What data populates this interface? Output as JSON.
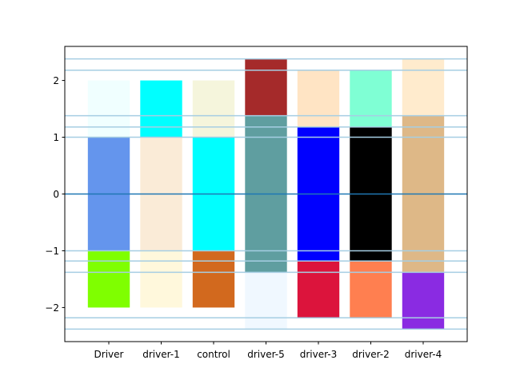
{
  "chart_data": {
    "type": "bar",
    "stacked": true,
    "categories": [
      "Driver",
      "driver-1",
      "control",
      "driver-5",
      "driver-3",
      "driver-2",
      "driver-4"
    ],
    "segments": [
      [
        {
          "from": -1,
          "to": 1,
          "color": "#6495ED"
        },
        {
          "from": 1,
          "to": 2,
          "color": "#F0FFFF"
        },
        {
          "from": -2,
          "to": -1,
          "color": "#7FFF00"
        }
      ],
      [
        {
          "from": -1,
          "to": 1,
          "color": "#FAEBD7"
        },
        {
          "from": 1,
          "to": 2,
          "color": "#00FFFF"
        },
        {
          "from": -2,
          "to": -1,
          "color": "#FFF8DC"
        }
      ],
      [
        {
          "from": -1,
          "to": 1,
          "color": "#00FFFF"
        },
        {
          "from": 1,
          "to": 2,
          "color": "#F5F5DC"
        },
        {
          "from": -2,
          "to": -1,
          "color": "#D2691E"
        }
      ],
      [
        {
          "from": -1.38,
          "to": 1.38,
          "color": "#5F9EA0"
        },
        {
          "from": 1.38,
          "to": 2.38,
          "color": "#A52A2A"
        },
        {
          "from": -2.38,
          "to": -1.38,
          "color": "#F0F8FF"
        }
      ],
      [
        {
          "from": -1.18,
          "to": 1.18,
          "color": "#0000FF"
        },
        {
          "from": 1.18,
          "to": 2.18,
          "color": "#FFE4C4"
        },
        {
          "from": -2.18,
          "to": -1.18,
          "color": "#DC143C"
        }
      ],
      [
        {
          "from": -1.18,
          "to": 1.18,
          "color": "#000000"
        },
        {
          "from": 1.18,
          "to": 2.18,
          "color": "#7FFFD4"
        },
        {
          "from": -2.18,
          "to": -1.18,
          "color": "#FF7F50"
        }
      ],
      [
        {
          "from": -1.38,
          "to": 1.38,
          "color": "#DEB887"
        },
        {
          "from": 1.38,
          "to": 2.38,
          "color": "#FFEBCD"
        },
        {
          "from": -2.38,
          "to": -1.38,
          "color": "#8A2BE2"
        }
      ]
    ],
    "hlines": [
      2.38,
      2.18,
      1.38,
      1.18,
      1.0,
      -1.0,
      -1.18,
      -1.38,
      -2.18,
      -2.38
    ],
    "hline_color": "#A6CEE3",
    "zero_line_color": "#1F77B4",
    "yticks": [
      -2,
      -1,
      0,
      1,
      2
    ],
    "ytick_labels": [
      "−2",
      "−1",
      "0",
      "1",
      "2"
    ],
    "ylim": [
      -2.6,
      2.6
    ],
    "title": "",
    "xlabel": "",
    "ylabel": "",
    "grid": false,
    "legend": "none"
  }
}
